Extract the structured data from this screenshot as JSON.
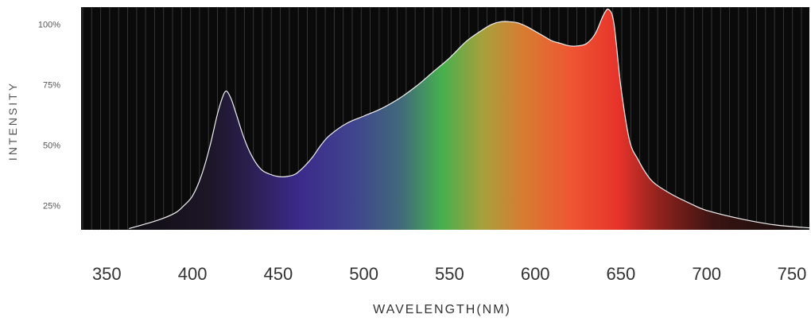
{
  "chart_data": {
    "type": "area",
    "title": "",
    "xlabel": "WAVELENGTH(NM)",
    "ylabel": "INTENSITY",
    "xlim": [
      335,
      760
    ],
    "ylim": [
      15,
      107
    ],
    "x_ticks": [
      350,
      400,
      450,
      500,
      550,
      600,
      650,
      700,
      750
    ],
    "y_ticks": [
      25,
      50,
      75,
      100
    ],
    "y_tick_labels": [
      "25%",
      "50%",
      "75%",
      "100%"
    ],
    "grid": "vertical lines on dark background",
    "fill": "visible-spectrum gradient",
    "colors": {
      "background": "#0a0a0a",
      "gridline": "#3a3a3a",
      "outline": "#f2f2f2"
    },
    "series": [
      {
        "x": [
          363,
          380,
          390,
          395,
          400,
          405,
          410,
          415,
          419,
          422,
          425,
          430,
          435,
          440,
          445,
          450,
          455,
          460,
          465,
          470,
          475,
          480,
          490,
          500,
          510,
          520,
          530,
          540,
          550,
          560,
          570,
          575,
          580,
          585,
          590,
          595,
          600,
          605,
          610,
          615,
          620,
          625,
          630,
          635,
          640,
          643,
          646,
          650,
          655,
          660,
          665,
          670,
          680,
          690,
          700,
          720,
          740,
          760
        ],
        "y": [
          15.5,
          19,
          22,
          25,
          29,
          37,
          49,
          64,
          72,
          70,
          64,
          53,
          45,
          40,
          38,
          37,
          37,
          38,
          41,
          45,
          50,
          54,
          59,
          62,
          65,
          69,
          74,
          80,
          86,
          93,
          98,
          100,
          101,
          101,
          100.5,
          99,
          97,
          95,
          93,
          92,
          91,
          91,
          92,
          96,
          104,
          106,
          100,
          74,
          52,
          44,
          38,
          34,
          29.5,
          26,
          23,
          19.5,
          17,
          15.8
        ]
      }
    ]
  }
}
